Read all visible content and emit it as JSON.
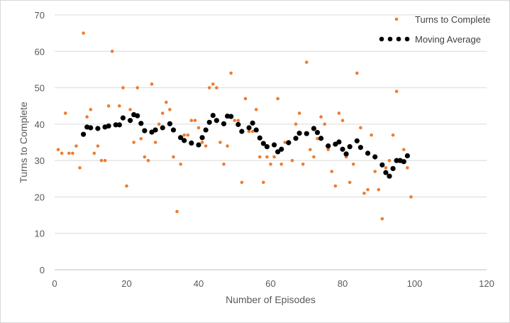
{
  "chart_data": {
    "type": "scatter",
    "xlabel": "Number of Episodes",
    "ylabel": "Turns to Complete",
    "xlim": [
      0,
      120
    ],
    "ylim": [
      0,
      70
    ],
    "x_ticks": [
      "0",
      "20",
      "40",
      "60",
      "80",
      "100",
      "120"
    ],
    "y_ticks": [
      "0",
      "10",
      "20",
      "30",
      "40",
      "50",
      "60",
      "70"
    ],
    "grid": "horizontal",
    "legend_position": "top-right",
    "series": [
      {
        "name": "Turns to Complete",
        "color": "#ed7d31",
        "marker": "small-dot",
        "points": [
          [
            1,
            33
          ],
          [
            2,
            32
          ],
          [
            3,
            43
          ],
          [
            4,
            32
          ],
          [
            5,
            32
          ],
          [
            6,
            34
          ],
          [
            7,
            28
          ],
          [
            8,
            65
          ],
          [
            9,
            42
          ],
          [
            10,
            44
          ],
          [
            11,
            32
          ],
          [
            12,
            34
          ],
          [
            13,
            30
          ],
          [
            14,
            30
          ],
          [
            15,
            45
          ],
          [
            16,
            60
          ],
          [
            17,
            40
          ],
          [
            18,
            45
          ],
          [
            19,
            50
          ],
          [
            20,
            23
          ],
          [
            21,
            44
          ],
          [
            22,
            35
          ],
          [
            23,
            50
          ],
          [
            24,
            36
          ],
          [
            25,
            31
          ],
          [
            26,
            30
          ],
          [
            27,
            51
          ],
          [
            28,
            35
          ],
          [
            29,
            40
          ],
          [
            30,
            43
          ],
          [
            31,
            46
          ],
          [
            32,
            44
          ],
          [
            33,
            31
          ],
          [
            34,
            16
          ],
          [
            35,
            29
          ],
          [
            36,
            37
          ],
          [
            37,
            37
          ],
          [
            38,
            41
          ],
          [
            39,
            41
          ],
          [
            40,
            39
          ],
          [
            41,
            35
          ],
          [
            42,
            34
          ],
          [
            43,
            50
          ],
          [
            44,
            51
          ],
          [
            45,
            50
          ],
          [
            46,
            35
          ],
          [
            47,
            29
          ],
          [
            48,
            34
          ],
          [
            49,
            54
          ],
          [
            50,
            41
          ],
          [
            51,
            41
          ],
          [
            52,
            24
          ],
          [
            53,
            47
          ],
          [
            54,
            38
          ],
          [
            55,
            38
          ],
          [
            56,
            44
          ],
          [
            57,
            31
          ],
          [
            58,
            24
          ],
          [
            59,
            31
          ],
          [
            60,
            29
          ],
          [
            61,
            31
          ],
          [
            62,
            47
          ],
          [
            63,
            29
          ],
          [
            64,
            35
          ],
          [
            65,
            35
          ],
          [
            66,
            30
          ],
          [
            67,
            40
          ],
          [
            68,
            43
          ],
          [
            69,
            29
          ],
          [
            70,
            57
          ],
          [
            71,
            33
          ],
          [
            72,
            31
          ],
          [
            73,
            36
          ],
          [
            74,
            42
          ],
          [
            75,
            40
          ],
          [
            76,
            33
          ],
          [
            77,
            27
          ],
          [
            78,
            23
          ],
          [
            79,
            43
          ],
          [
            80,
            41
          ],
          [
            81,
            31
          ],
          [
            82,
            24
          ],
          [
            83,
            29
          ],
          [
            84,
            54
          ],
          [
            85,
            39
          ],
          [
            86,
            21
          ],
          [
            87,
            22
          ],
          [
            88,
            37
          ],
          [
            89,
            27
          ],
          [
            90,
            22
          ],
          [
            91,
            14
          ],
          [
            92,
            28
          ],
          [
            93,
            30
          ],
          [
            94,
            37
          ],
          [
            95,
            49
          ],
          [
            96,
            30
          ],
          [
            97,
            33
          ],
          [
            98,
            28
          ],
          [
            99,
            20
          ]
        ]
      },
      {
        "name": "Moving Average",
        "color": "#000000",
        "marker": "dot",
        "points": [
          [
            8,
            37.2
          ],
          [
            9,
            39.2
          ],
          [
            10,
            39
          ],
          [
            12,
            38.8
          ],
          [
            14,
            39.2
          ],
          [
            15,
            39.5
          ],
          [
            17,
            39.8
          ],
          [
            18,
            39.8
          ],
          [
            19,
            41.7
          ],
          [
            21,
            41
          ],
          [
            22,
            42.6
          ],
          [
            23,
            42.3
          ],
          [
            24,
            40.2
          ],
          [
            25,
            38.2
          ],
          [
            27,
            37.8
          ],
          [
            28,
            38.4
          ],
          [
            30,
            39
          ],
          [
            32,
            40.1
          ],
          [
            33,
            38.4
          ],
          [
            35,
            36.3
          ],
          [
            36,
            35.5
          ],
          [
            38,
            34.8
          ],
          [
            40,
            34.3
          ],
          [
            41,
            36.3
          ],
          [
            42,
            38.4
          ],
          [
            43,
            40.5
          ],
          [
            44,
            42.4
          ],
          [
            45,
            41
          ],
          [
            47,
            40.1
          ],
          [
            48,
            42.2
          ],
          [
            49,
            42.1
          ],
          [
            51,
            39.9
          ],
          [
            52,
            38
          ],
          [
            54,
            39
          ],
          [
            55,
            40.3
          ],
          [
            56,
            38.4
          ],
          [
            57,
            36.2
          ],
          [
            58,
            34.7
          ],
          [
            59,
            33.8
          ],
          [
            61,
            34.3
          ],
          [
            62,
            32.4
          ],
          [
            63,
            33.1
          ],
          [
            65,
            34.9
          ],
          [
            67,
            36.1
          ],
          [
            68,
            37.5
          ],
          [
            70,
            37.4
          ],
          [
            72,
            38.8
          ],
          [
            73,
            37.7
          ],
          [
            74,
            36.1
          ],
          [
            76,
            34
          ],
          [
            78,
            34.5
          ],
          [
            79,
            35.1
          ],
          [
            80,
            33.1
          ],
          [
            81,
            31.8
          ],
          [
            82,
            33.8
          ],
          [
            84,
            35.4
          ],
          [
            85,
            33.6
          ],
          [
            87,
            32
          ],
          [
            89,
            31
          ],
          [
            91,
            28.8
          ],
          [
            92,
            26.7
          ],
          [
            93,
            25.7
          ],
          [
            94,
            27.8
          ],
          [
            95,
            30
          ],
          [
            96,
            30
          ],
          [
            97,
            29.7
          ],
          [
            98,
            31.3
          ]
        ]
      }
    ]
  }
}
